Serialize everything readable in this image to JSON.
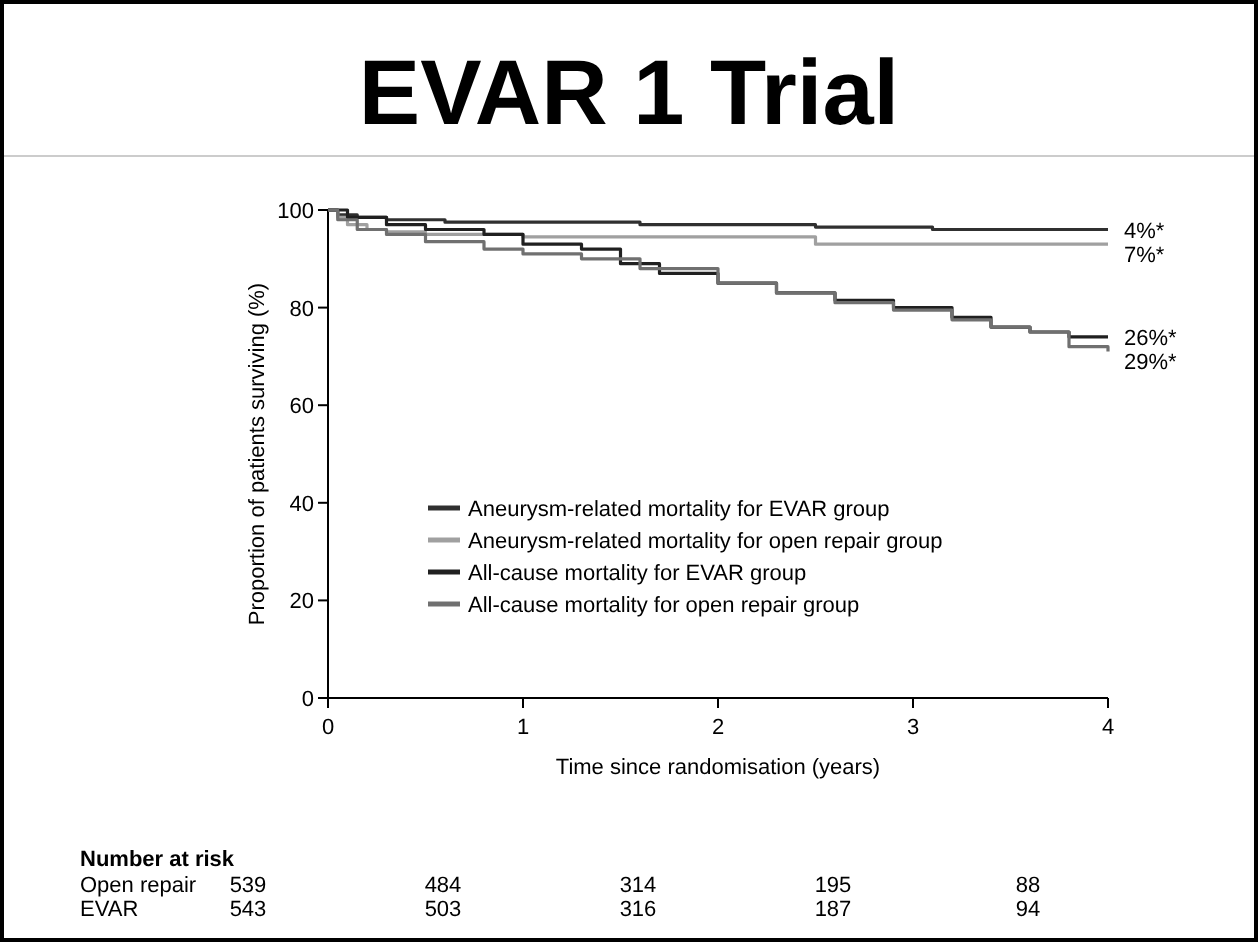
{
  "chart_data": {
    "type": "step",
    "title": "EVAR 1 Trial",
    "xlabel": "Time since randomisation (years)",
    "ylabel": "Proportion of patients surviving (%)",
    "xlim": [
      0,
      4
    ],
    "ylim": [
      0,
      100
    ],
    "xticks": [
      0,
      1,
      2,
      3,
      4
    ],
    "yticks": [
      0,
      20,
      40,
      60,
      80,
      100
    ],
    "grid": false,
    "legend": "bottom",
    "marker": "none",
    "line_style": "solid",
    "series": [
      {
        "name": "Aneurysm-related mortality for EVAR group",
        "color": "#303030",
        "x": [
          0,
          0.05,
          0.15,
          0.3,
          0.6,
          1.6,
          2.5,
          3.1,
          4
        ],
        "values": [
          100,
          99,
          98.5,
          98,
          97.5,
          97,
          96.5,
          96,
          96
        ]
      },
      {
        "name": "Aneurysm-related mortality for open repair group",
        "color": "#a0a0a0",
        "x": [
          0,
          0.05,
          0.1,
          0.2,
          0.3,
          0.5,
          1.0,
          2.5,
          4
        ],
        "values": [
          100,
          98.5,
          97,
          96,
          95.5,
          95,
          94.5,
          93,
          93
        ]
      },
      {
        "name": "All-cause mortality for EVAR group",
        "color": "#202020",
        "x": [
          0,
          0.1,
          0.3,
          0.5,
          0.8,
          1.0,
          1.3,
          1.5,
          1.7,
          2.0,
          2.3,
          2.6,
          2.9,
          3.2,
          3.4,
          3.6,
          3.8,
          4
        ],
        "values": [
          100,
          98.5,
          97,
          96,
          95,
          93,
          92,
          89,
          87,
          85,
          83,
          81.5,
          80,
          78,
          76,
          75,
          74,
          74
        ]
      },
      {
        "name": "All-cause mortality for open repair group",
        "color": "#707070",
        "x": [
          0,
          0.05,
          0.15,
          0.3,
          0.5,
          0.8,
          1.0,
          1.3,
          1.6,
          2.0,
          2.3,
          2.6,
          2.9,
          3.2,
          3.4,
          3.6,
          3.8,
          4
        ],
        "values": [
          100,
          98,
          96,
          95,
          93.5,
          92,
          91,
          90,
          88,
          85,
          83,
          81,
          79.5,
          77.5,
          76,
          75,
          72,
          71
        ]
      }
    ],
    "annotations": [
      "4%*",
      "7%*",
      "26%*",
      "29%*",
      "Number at risk",
      "Open repair",
      "539",
      "484",
      "314",
      "195",
      "88",
      "EVAR",
      "543",
      "503",
      "316",
      "187",
      "94"
    ]
  }
}
